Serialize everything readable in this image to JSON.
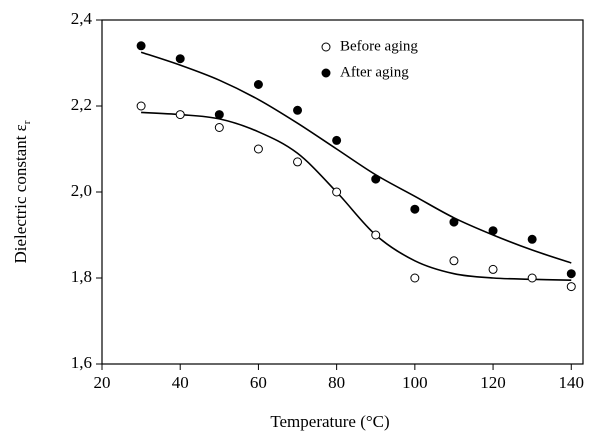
{
  "chart_data": {
    "type": "scatter",
    "xlabel": "Temperature (°C)",
    "ylabel": "Dielectric constant ε",
    "ylabel_sub": "r",
    "x": [
      30,
      40,
      50,
      60,
      70,
      80,
      90,
      100,
      110,
      120,
      130,
      140
    ],
    "series": [
      {
        "name": "Before aging",
        "color": "#000000",
        "marker": "open",
        "values": [
          2.2,
          2.18,
          2.15,
          2.1,
          2.07,
          2.0,
          1.9,
          1.8,
          1.84,
          1.82,
          1.8,
          1.78
        ],
        "fit": [
          2.185,
          2.18,
          2.17,
          2.14,
          2.09,
          2.0,
          1.9,
          1.84,
          1.81,
          1.8,
          1.797,
          1.795
        ]
      },
      {
        "name": "After aging",
        "color": "#000000",
        "marker": "filled",
        "values": [
          2.34,
          2.31,
          2.18,
          2.25,
          2.19,
          2.12,
          2.03,
          1.96,
          1.93,
          1.91,
          1.89,
          1.81
        ],
        "fit": [
          2.325,
          2.295,
          2.26,
          2.215,
          2.16,
          2.1,
          2.04,
          1.99,
          1.94,
          1.9,
          1.865,
          1.835
        ]
      }
    ],
    "xlim": [
      20,
      143
    ],
    "xticks": [
      20,
      40,
      60,
      80,
      100,
      120,
      140
    ],
    "ylim": [
      1.6,
      2.4
    ],
    "yticks": [
      {
        "value": 1.6,
        "label": "1,6"
      },
      {
        "value": 1.8,
        "label": "1,8"
      },
      {
        "value": 2.0,
        "label": "2,0"
      },
      {
        "value": 2.2,
        "label": "2,2"
      },
      {
        "value": 2.4,
        "label": "2,4"
      }
    ],
    "grid": false
  }
}
